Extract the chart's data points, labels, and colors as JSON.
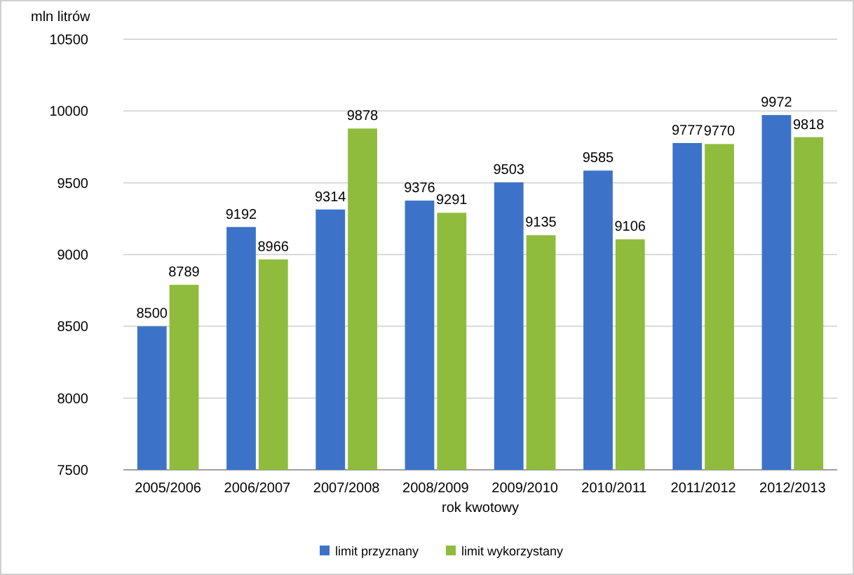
{
  "chart_data": {
    "type": "bar",
    "ylabel": "mln litrów",
    "xlabel": "rok kwotowy",
    "categories": [
      "2005/2006",
      "2006/2007",
      "2007/2008",
      "2008/2009",
      "2009/2010",
      "2010/2011",
      "2011/2012",
      "2012/2013"
    ],
    "series": [
      {
        "name": "limit przyznany",
        "color": "#3c73c8",
        "values": [
          8500,
          9192,
          9314,
          9376,
          9503,
          9585,
          9777,
          9972
        ]
      },
      {
        "name": "limit wykorzystany",
        "color": "#8fbc3c",
        "values": [
          8789,
          8966,
          9878,
          9291,
          9135,
          9106,
          9770,
          9818
        ]
      }
    ],
    "ylim": [
      7500,
      10500
    ],
    "yticks": [
      7500,
      8000,
      8500,
      9000,
      9500,
      10000,
      10500
    ],
    "grid": "y",
    "legend": "bottom",
    "data_labels": true
  }
}
